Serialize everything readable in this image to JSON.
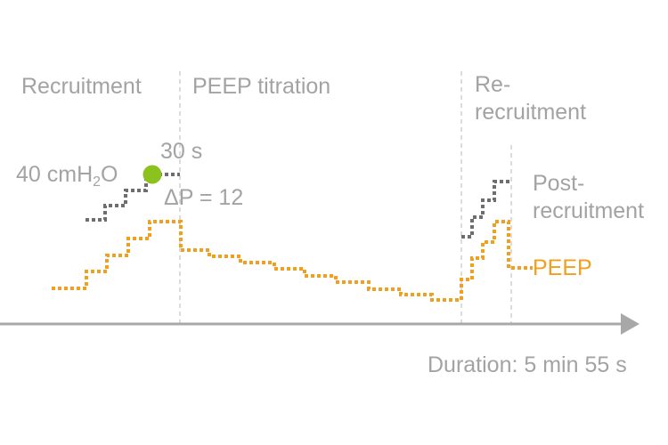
{
  "phases": {
    "recruitment": "Recruitment",
    "titration": "PEEP titration",
    "rerecruitment_line1": "Re-",
    "rerecruitment_line2": "recruitment"
  },
  "annotations": {
    "pressure_prefix": "40 cmH",
    "pressure_sub": "2",
    "pressure_suffix": "O",
    "hold_time": "30 s",
    "driving_pressure": "ΔP = 12"
  },
  "legend": {
    "post_line1": "Post-",
    "post_line2": "recruitment",
    "peep": "PEEP"
  },
  "axis": {
    "duration_label": "Duration: 5 min 55 s"
  },
  "colors": {
    "text": "#a3a3a3",
    "peep": "#f0a01e",
    "pressure": "#6e6e6e",
    "marker": "#8cc21e",
    "axis": "#a8a8a8",
    "divider": "#c4c4c4"
  }
}
